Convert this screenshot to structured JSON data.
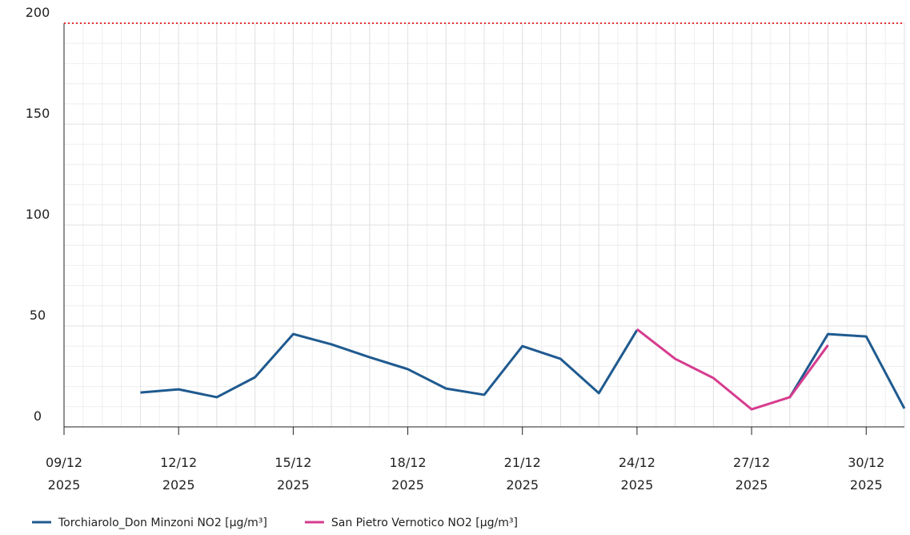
{
  "chart_data": {
    "type": "line",
    "x": [
      "2025-12-11",
      "2025-12-12",
      "2025-12-13",
      "2025-12-14",
      "2025-12-15",
      "2025-12-16",
      "2025-12-17",
      "2025-12-18",
      "2025-12-19",
      "2025-12-20",
      "2025-12-21",
      "2025-12-22",
      "2025-12-23",
      "2025-12-24",
      "2025-12-25",
      "2025-12-26",
      "2025-12-27",
      "2025-12-28",
      "2025-12-29",
      "2025-12-30",
      "2025-12-31"
    ],
    "series": [
      {
        "name": "Torchiarolo_Don Minzoni NO2 [µg/m³]",
        "color": "#1f5a8f",
        "values": [
          17,
          18.6,
          14.7,
          24.6,
          46,
          40.9,
          34.5,
          28.6,
          19,
          15.9,
          40,
          33.7,
          16.7,
          48,
          null,
          null,
          null,
          14.7,
          46,
          44.8,
          9.1
        ]
      },
      {
        "name": "San Pietro Vernotico NO2 [µg/m³]",
        "color": "#d63c8e",
        "values": [
          null,
          null,
          null,
          null,
          null,
          null,
          null,
          null,
          null,
          null,
          null,
          null,
          null,
          48.4,
          33.7,
          24.2,
          8.7,
          14.7,
          40.5,
          null,
          null
        ]
      }
    ],
    "xlim": [
      "2025-12-09",
      "2025-12-31"
    ],
    "xticks": [
      {
        "value": "2025-12-09",
        "label": "09/12 2025"
      },
      {
        "value": "2025-12-12",
        "label": "12/12 2025"
      },
      {
        "value": "2025-12-15",
        "label": "15/12 2025"
      },
      {
        "value": "2025-12-18",
        "label": "18/12 2025"
      },
      {
        "value": "2025-12-21",
        "label": "21/12 2025"
      },
      {
        "value": "2025-12-24",
        "label": "24/12 2025"
      },
      {
        "value": "2025-12-27",
        "label": "27/12 2025"
      },
      {
        "value": "2025-12-30",
        "label": "30/12 2025"
      }
    ],
    "ylim": [
      0,
      200
    ],
    "yticks": [
      0,
      50,
      100,
      150,
      200
    ],
    "threshold": {
      "value": 200,
      "color": "#e8323c"
    },
    "grid": true,
    "legend": "bottom-left"
  }
}
